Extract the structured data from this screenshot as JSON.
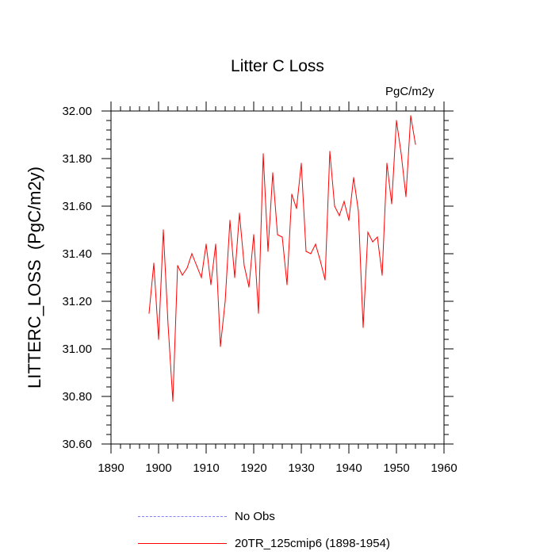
{
  "chart_data": {
    "type": "line",
    "title": "Litter C Loss",
    "units": "PgC/m2y",
    "ylabel": "LITTERC_LOSS  (PgC/m2y)",
    "xlabel": "",
    "xlim": [
      1890,
      1960
    ],
    "ylim": [
      30.6,
      32.0
    ],
    "xticks": [
      1890,
      1900,
      1910,
      1920,
      1930,
      1940,
      1950,
      1960
    ],
    "yticks": [
      "30.60",
      "30.80",
      "31.00",
      "31.20",
      "31.40",
      "31.60",
      "31.80",
      "32.00"
    ],
    "legend": [
      {
        "label": "No Obs",
        "style": "dashed",
        "color": "#8080ff"
      },
      {
        "label": "20TR_125cmip6 (1898-1954)",
        "style": "solid",
        "color": "#ff0000"
      }
    ],
    "series": [
      {
        "name": "20TR_125cmip6 (1898-1954)",
        "color": "#ff0000",
        "x": [
          1898,
          1899,
          1900,
          1901,
          1902,
          1903,
          1904,
          1905,
          1906,
          1907,
          1908,
          1909,
          1910,
          1911,
          1912,
          1913,
          1914,
          1915,
          1916,
          1917,
          1918,
          1919,
          1920,
          1921,
          1922,
          1923,
          1924,
          1925,
          1926,
          1927,
          1928,
          1929,
          1930,
          1931,
          1932,
          1933,
          1934,
          1935,
          1936,
          1937,
          1938,
          1939,
          1940,
          1941,
          1942,
          1943,
          1944,
          1945,
          1946,
          1947,
          1948,
          1949,
          1950,
          1951,
          1952,
          1953,
          1954
        ],
        "values": [
          31.15,
          31.36,
          31.04,
          31.5,
          31.1,
          30.78,
          31.35,
          31.31,
          31.34,
          31.4,
          31.35,
          31.3,
          31.44,
          31.27,
          31.44,
          31.01,
          31.2,
          31.54,
          31.3,
          31.57,
          31.35,
          31.26,
          31.48,
          31.15,
          31.82,
          31.41,
          31.74,
          31.48,
          31.47,
          31.27,
          31.65,
          31.59,
          31.78,
          31.41,
          31.4,
          31.44,
          31.37,
          31.29,
          31.83,
          31.6,
          31.56,
          31.62,
          31.54,
          31.72,
          31.58,
          31.09,
          31.49,
          31.45,
          31.47,
          31.31,
          31.78,
          31.61,
          31.96,
          31.82,
          31.64,
          31.98,
          31.86
        ]
      }
    ]
  }
}
